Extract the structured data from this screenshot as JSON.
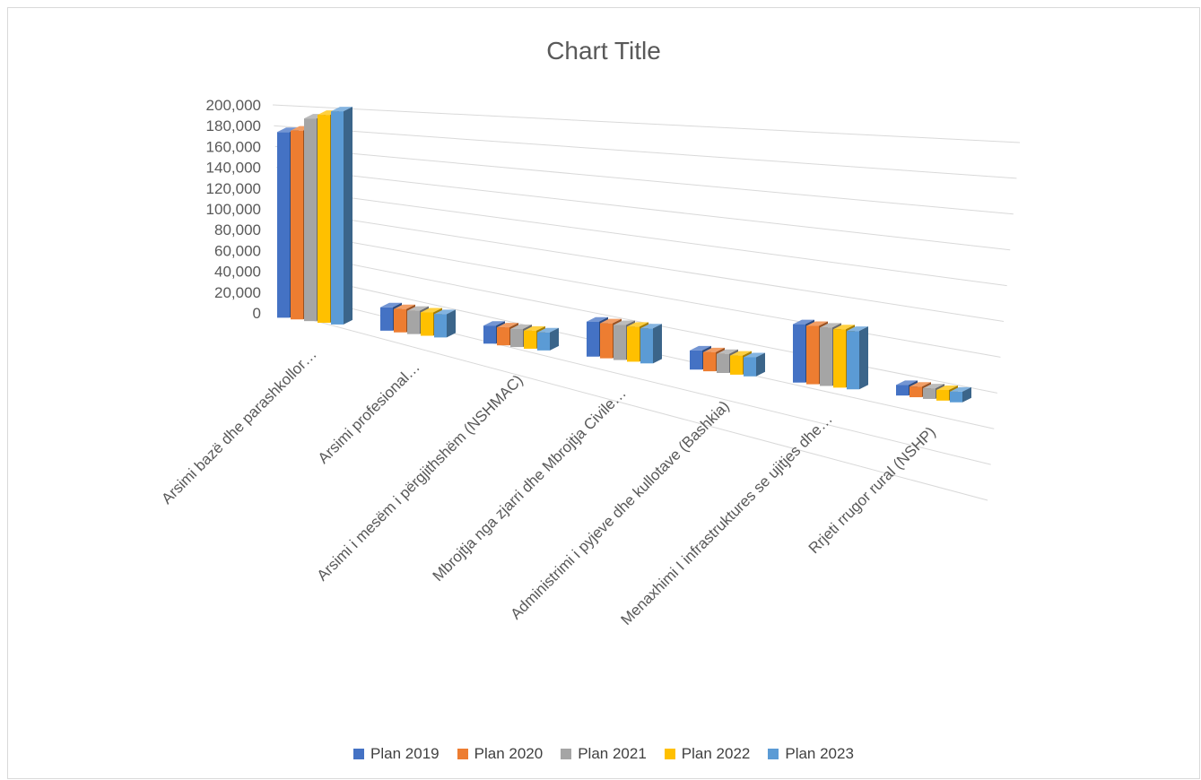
{
  "chart_data": {
    "type": "bar",
    "subtype": "3d-clustered-column",
    "title": "Chart Title",
    "xlabel": "",
    "ylabel": "",
    "ylim": [
      0,
      200000
    ],
    "yticks": [
      "0",
      "20,000",
      "40,000",
      "60,000",
      "80,000",
      "100,000",
      "120,000",
      "140,000",
      "160,000",
      "180,000",
      "200,000"
    ],
    "grid": true,
    "legend_position": "bottom",
    "categories": [
      "Arsimi bazë dhe parashkollor…",
      "Arsimi profesional…",
      "Arsimi i mesëm i përgjithshëm (NSHMAC)",
      "Mbrojtja nga zjarri dhe Mbrojtja Civile…",
      "Administrimi i pyjeve dhe kullotave (Bashkia)",
      "Menaxhimi I infrastruktures se ujitjes dhe…",
      "Rrjeti rrugor rural (NSHP)"
    ],
    "series": [
      {
        "name": "Plan 2019",
        "color": "#4472c4",
        "values": [
          175000,
          22000,
          17000,
          33000,
          18000,
          55000,
          10000
        ]
      },
      {
        "name": "Plan 2020",
        "color": "#ed7d31",
        "values": [
          178000,
          22000,
          17000,
          33000,
          18000,
          55000,
          10000
        ]
      },
      {
        "name": "Plan 2021",
        "color": "#a5a5a5",
        "values": [
          191000,
          22000,
          17000,
          33000,
          18000,
          55000,
          10000
        ]
      },
      {
        "name": "Plan 2022",
        "color": "#ffc000",
        "values": [
          196000,
          22000,
          17000,
          33000,
          18000,
          55000,
          10000
        ]
      },
      {
        "name": "Plan 2023",
        "color": "#5b9bd5",
        "values": [
          201000,
          22000,
          17000,
          33000,
          18000,
          55000,
          10000
        ]
      }
    ]
  }
}
